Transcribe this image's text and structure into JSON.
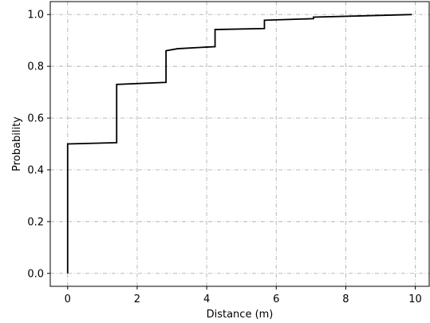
{
  "chart_data": {
    "type": "line",
    "title": "",
    "xlabel": "Distance (m)",
    "ylabel": "Probability",
    "xlim": [
      -0.5,
      10.4
    ],
    "ylim": [
      -0.05,
      1.05
    ],
    "x_ticks": [
      0,
      2,
      4,
      6,
      8,
      10
    ],
    "x_tick_labels": [
      "0",
      "2",
      "4",
      "6",
      "8",
      "10"
    ],
    "y_ticks": [
      0.0,
      0.2,
      0.4,
      0.6,
      0.8,
      1.0
    ],
    "y_tick_labels": [
      "0.0",
      "0.2",
      "0.4",
      "0.6",
      "0.8",
      "1.0"
    ],
    "grid": true,
    "grid_style": "dash-dot",
    "line_color": "#000000",
    "grid_color": "#b0b0b0",
    "series": [
      {
        "step": true,
        "points": [
          [
            0,
            0.0
          ],
          [
            0,
            0.5
          ],
          [
            1.41,
            0.505
          ],
          [
            1.41,
            0.73
          ],
          [
            2.83,
            0.738
          ],
          [
            2.83,
            0.86
          ],
          [
            3.16,
            0.868
          ],
          [
            4.24,
            0.876
          ],
          [
            4.24,
            0.942
          ],
          [
            5.66,
            0.946
          ],
          [
            5.66,
            0.978
          ],
          [
            7.07,
            0.984
          ],
          [
            7.07,
            0.99
          ],
          [
            9.9,
            1.0
          ]
        ]
      }
    ]
  }
}
